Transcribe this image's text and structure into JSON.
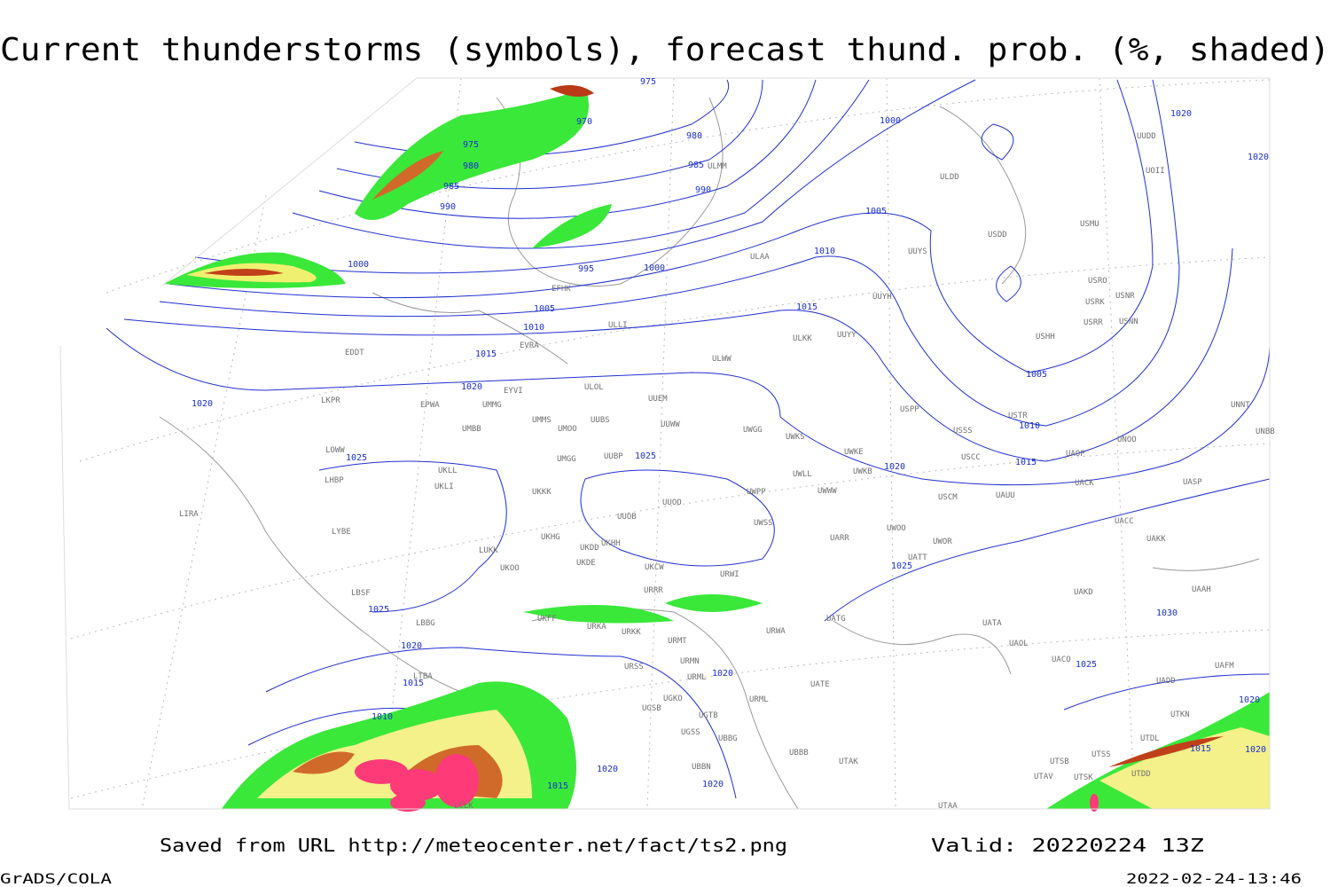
{
  "title": "Current thunderstorms (symbols), forecast thund. prob. (%, shaded)",
  "saved_from": "Saved from URL http://meteocenter.net/fact/ts2.png",
  "valid": "Valid: 20220224 13Z",
  "software": "GrADS/COLA",
  "timestamp": "2022-02-24-13:46",
  "isobar_labels": [
    "975",
    "970",
    "980",
    "975",
    "980",
    "985",
    "985",
    "990",
    "990",
    "995",
    "1000",
    "1000",
    "1000",
    "1005",
    "1005",
    "1010",
    "1010",
    "1015",
    "1015",
    "1020",
    "1020",
    "1025",
    "1025",
    "1020",
    "1005",
    "1010",
    "1015",
    "1020",
    "1020",
    "1025",
    "1025",
    "1020",
    "1015",
    "1010",
    "1020",
    "1020",
    "1015",
    "1020",
    "1025",
    "1030",
    "1020",
    "1015",
    "1020"
  ],
  "stations": [
    "ULAA",
    "ULDD",
    "USDD",
    "USMU",
    "UUYS",
    "UUYH",
    "USRO",
    "USRK",
    "USNR",
    "USRR",
    "USNN",
    "USHH",
    "UUYY",
    "ULKK",
    "ULWW",
    "ULOL",
    "UUEM",
    "EYVI",
    "EVRA",
    "ULLI",
    "EDDT",
    "EPWA",
    "UMMG",
    "UMMS",
    "UUBS",
    "UMOO",
    "UUWW",
    "UWGG",
    "UWKS",
    "UWKE",
    "UWKB",
    "UWLL",
    "UWWW",
    "USPP",
    "USSS",
    "USTR",
    "USCC",
    "USCM",
    "UAUU",
    "UAOP",
    "UNOO",
    "UACK",
    "UASP",
    "UNNT",
    "UNBB",
    "UACC",
    "UAKK",
    "LKPR",
    "UMBB",
    "LOWW",
    "UKLL",
    "UKLI",
    "LHBP",
    "UMGG",
    "UUBP",
    "UKKK",
    "UUOB",
    "UUOO",
    "UWPP",
    "UWSS",
    "UARR",
    "UWOO",
    "UWOR",
    "UKHH",
    "UKHG",
    "UKDD",
    "UKDE",
    "UKOO",
    "UKCW",
    "URWI",
    "UATT",
    "UAKD",
    "UAAH",
    "LIRA",
    "LYBE",
    "LUKK",
    "LBSF",
    "URRR",
    "LBBG",
    "UKFF",
    "URKA",
    "URKK",
    "URMT",
    "UATG",
    "URWA",
    "UATA",
    "UAOL",
    "UACO",
    "UAFM",
    "URSS",
    "URMN",
    "URML",
    "UATE",
    "URML",
    "LTBA",
    "UGKO",
    "UGSB",
    "UGTB",
    "UBBB",
    "UGSS",
    "UBBG",
    "UBBN",
    "UTAK",
    "LCLK",
    "UTAA",
    "UTAV",
    "UTSB",
    "UTSK",
    "UTDD",
    "UTDL",
    "UTSS",
    "UADD",
    "UTKN",
    "UUDD",
    "UOII",
    "ULMM",
    "EFHK"
  ]
}
